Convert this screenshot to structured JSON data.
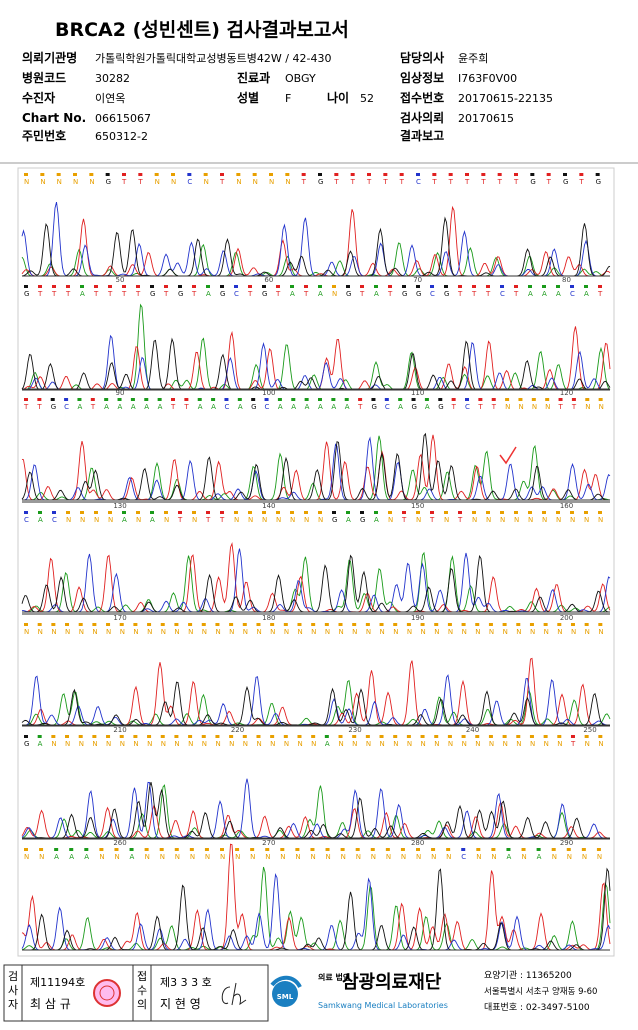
{
  "header": {
    "title": "BRCA2 (성빈센트) 검사결과보고서",
    "fields": [
      {
        "label": "의뢰기관명",
        "value": "가톨릭학원가톨릭대학교성병동트병42W / 42-430"
      },
      {
        "label": "담당의사",
        "value": "윤주희"
      },
      {
        "label": "병원코드",
        "value": "30282"
      },
      {
        "label": "진료과",
        "value": "OBGY"
      },
      {
        "label": "임상정보",
        "value": "I763F0V00"
      },
      {
        "label": "수진자",
        "value": "이연옥"
      },
      {
        "label": "성별",
        "value": "F"
      },
      {
        "label": "나이",
        "value": "52"
      },
      {
        "label": "접수번호",
        "value": "20170615-22135"
      },
      {
        "label": "Chart No.",
        "value": "06615067"
      },
      {
        "label": "검사의뢰",
        "value": "20170615"
      },
      {
        "label": "주민번호",
        "value": "650312-2"
      },
      {
        "label": "결과보고"
      }
    ]
  },
  "chromatogram": {
    "panels": [
      {
        "bases": "NNNNNGTTNNCNTNNNNTGTTTTTCTTTTTTGTGTG"
      },
      {
        "ticks": [
          "50",
          "60",
          "70",
          "80"
        ],
        "bases": "GTTTATTTTGTGTAGCTGTATANGTATGGCGTTTCTAAACAT"
      },
      {
        "ticks": [
          "90",
          "100",
          "110",
          "120"
        ],
        "bases": "TTGCATAAAAATTAACAGCAAAAAATGCAGAGTCTTNNNNTTNN"
      },
      {
        "ticks": [
          "130",
          "140",
          "150",
          "160"
        ],
        "bases": "CACNNNNANANTNTTNNNNNNNGAGANTNTNTNNNNNNNNNN"
      },
      {
        "ticks": [
          "170",
          "180",
          "190",
          "200"
        ],
        "bases": "NNNNNNNNNNNNNNNNNNNNNNNNNNNNNNNNNNNNNNNNNNN"
      },
      {
        "ticks": [
          "210",
          "220",
          "230",
          "240",
          "250"
        ],
        "bases": "GANNNNNNNNNNNNNNNNNNNNANNNNNNNNNNNNNNNNNTNN"
      },
      {
        "ticks": [
          "260",
          "270",
          "280",
          "290"
        ],
        "bases": "NNAAANNANNNNNNNNNNNNNNNNNNNNNCNNANANNNN"
      }
    ]
  },
  "footer": {
    "examiner": {
      "role": "검사자",
      "number": "제11194호",
      "name": "최 삼 규"
    },
    "receiver": {
      "role": "접수의",
      "number": "제3 3 3 호",
      "name": "지 현 영"
    },
    "logo": "SML",
    "corp_type": "의료 법인",
    "company": "삼광의료재단",
    "company_en": "Samkwang Medical Laboratories",
    "institution_code": "요양기관 : 11365200",
    "address": "서울특별시 서초구 양재동 9-60",
    "phone": "대표번호 : 02-3497-5100"
  }
}
